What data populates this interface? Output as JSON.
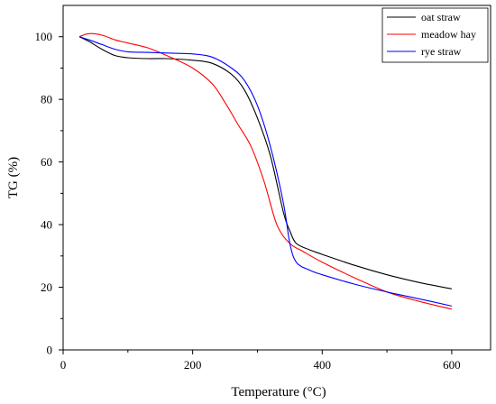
{
  "chart_data": {
    "type": "line",
    "title": "",
    "xlabel": "Temperature (°C)",
    "ylabel": "TG (%)",
    "xlim": [
      0,
      660
    ],
    "ylim": [
      0,
      110
    ],
    "xticks": [
      0,
      200,
      400,
      600
    ],
    "yticks": [
      0,
      20,
      40,
      60,
      80,
      100
    ],
    "grid": false,
    "legend_position": "top-right",
    "series": [
      {
        "name": "oat straw",
        "color": "#000000",
        "x": [
          25,
          40,
          60,
          80,
          100,
          130,
          160,
          200,
          230,
          260,
          280,
          300,
          320,
          340,
          350,
          360,
          380,
          400,
          450,
          500,
          550,
          600
        ],
        "y": [
          100,
          98.5,
          96,
          94,
          93.3,
          93,
          93,
          92.5,
          91.5,
          88,
          83,
          74,
          62,
          44,
          38,
          34,
          32,
          30.5,
          27,
          24,
          21.5,
          19.5
        ]
      },
      {
        "name": "meadow hay",
        "color": "#ff0000",
        "x": [
          25,
          40,
          60,
          80,
          100,
          130,
          160,
          200,
          230,
          250,
          270,
          290,
          310,
          330,
          350,
          370,
          400,
          450,
          500,
          550,
          600
        ],
        "y": [
          100,
          101,
          100.5,
          99,
          98,
          96.5,
          94,
          90,
          85,
          79,
          72,
          65,
          54,
          40,
          34,
          31.5,
          28,
          23,
          18.5,
          15.5,
          13
        ]
      },
      {
        "name": "rye straw",
        "color": "#0000ff",
        "x": [
          25,
          40,
          60,
          80,
          100,
          130,
          160,
          200,
          230,
          260,
          280,
          300,
          320,
          340,
          350,
          360,
          380,
          400,
          450,
          500,
          550,
          600
        ],
        "y": [
          100,
          99,
          97.5,
          96,
          95.2,
          95,
          94.8,
          94.5,
          93.5,
          90,
          86,
          78,
          65,
          47,
          34,
          28,
          25.5,
          24,
          21,
          18.5,
          16.3,
          14
        ]
      }
    ]
  }
}
